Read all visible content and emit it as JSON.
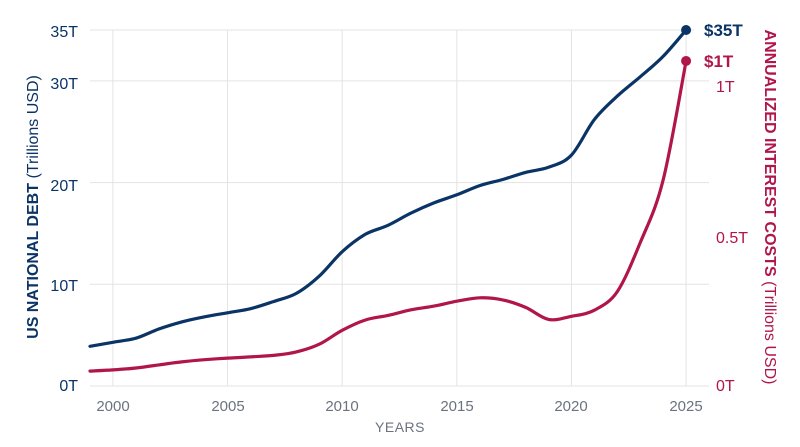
{
  "chart_data": {
    "type": "line",
    "x": [
      1999,
      2000,
      2001,
      2002,
      2003,
      2004,
      2005,
      2006,
      2007,
      2008,
      2009,
      2010,
      2011,
      2012,
      2013,
      2014,
      2015,
      2016,
      2017,
      2018,
      2019,
      2020,
      2021,
      2022,
      2023,
      2024,
      2025
    ],
    "series": [
      {
        "name": "US National Debt",
        "axis": "left",
        "color": "#0b3466",
        "values": [
          3.9,
          4.3,
          4.7,
          5.6,
          6.3,
          6.8,
          7.2,
          7.6,
          8.3,
          9.1,
          10.8,
          13.2,
          14.9,
          15.8,
          17.0,
          18.0,
          18.8,
          19.7,
          20.3,
          21.0,
          21.5,
          22.7,
          26.2,
          28.5,
          30.4,
          32.4,
          35.0
        ],
        "end_label": "$35T"
      },
      {
        "name": "Annualized Interest Costs",
        "axis": "right",
        "color": "#b0154c",
        "values": [
          0.048,
          0.052,
          0.058,
          0.068,
          0.078,
          0.085,
          0.09,
          0.094,
          0.099,
          0.11,
          0.135,
          0.18,
          0.213,
          0.228,
          0.246,
          0.258,
          0.274,
          0.285,
          0.278,
          0.254,
          0.215,
          0.225,
          0.245,
          0.305,
          0.463,
          0.665,
          1.05
        ],
        "end_label": "$1T"
      }
    ],
    "xlabel": "YEARS",
    "xticks": [
      "2000",
      "2005",
      "2010",
      "2015",
      "2020",
      "2025"
    ],
    "xlim": [
      1999,
      2026
    ],
    "ylabel_left_bold": "US NATIONAL DEBT",
    "ylabel_left_unit": "(Trillions USD)",
    "yticks_left": [
      "0T",
      "10T",
      "20T",
      "30T",
      "35T"
    ],
    "ylim_left": [
      0,
      35
    ],
    "ylabel_right_bold": "ANNUALIZED INTEREST COSTS",
    "ylabel_right_unit": "(Trillions USD)",
    "yticks_right": [
      "0T",
      "0.5T",
      "1T"
    ],
    "ylim_right": [
      0,
      1.15
    ],
    "grid": true
  }
}
